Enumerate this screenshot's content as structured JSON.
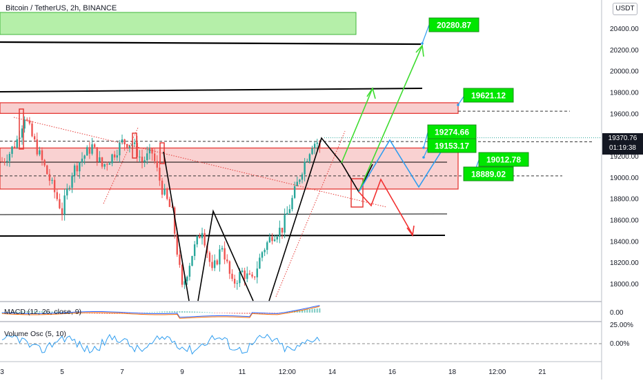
{
  "header": {
    "symbol_title": "Bitcoin / TetherUS, 2h, BINANCE"
  },
  "currency_badge": "USDT",
  "price_axis": {
    "ticks": [
      {
        "label": "20400.00",
        "value": 20400
      },
      {
        "label": "20200.00",
        "value": 20200
      },
      {
        "label": "20000.00",
        "value": 20000
      },
      {
        "label": "19800.00",
        "value": 19800
      },
      {
        "label": "19600.00",
        "value": 19600
      },
      {
        "label": "19200.00",
        "value": 19200
      },
      {
        "label": "19000.00",
        "value": 19000
      },
      {
        "label": "18800.00",
        "value": 18800
      },
      {
        "label": "18600.00",
        "value": 18600
      },
      {
        "label": "18400.00",
        "value": 18400
      },
      {
        "label": "18200.00",
        "value": 18200
      },
      {
        "label": "18000.00",
        "value": 18000
      }
    ],
    "last_price": "19370.76",
    "countdown": "01:19:38"
  },
  "time_axis": {
    "ticks": [
      {
        "label": "3",
        "t": 0
      },
      {
        "label": "5",
        "t": 24
      },
      {
        "label": "7",
        "t": 48
      },
      {
        "label": "9",
        "t": 72
      },
      {
        "label": "11",
        "t": 96
      },
      {
        "label": "12:00",
        "t": 114
      },
      {
        "label": "14",
        "t": 132
      },
      {
        "label": "16",
        "t": 156
      },
      {
        "label": "18",
        "t": 180
      },
      {
        "label": "12:00",
        "t": 198
      },
      {
        "label": "21",
        "t": 216
      }
    ]
  },
  "price_labels": [
    {
      "label": "20280.87",
      "value": 20280.87
    },
    {
      "label": "19621.12",
      "value": 19621.12
    },
    {
      "label": "19274.66",
      "value": 19274.66
    },
    {
      "label": "19153.17",
      "value": 19153.17
    },
    {
      "label": "19012.78",
      "value": 19012.78
    },
    {
      "label": "18889.02",
      "value": 18889.02
    }
  ],
  "indicators": {
    "macd": {
      "label": "MACD (12, 26, close, 9)",
      "axis_label": "0.00"
    },
    "volume_osc": {
      "label": "Volume Osc (5, 10)",
      "axis_labels": [
        "25.00%",
        "0.00%"
      ]
    }
  },
  "colors": {
    "up": "#26a69a",
    "down": "#ef5350",
    "zone_fill": "#f7c6c6",
    "zone_border": "#e53935",
    "label_green": "#00e600",
    "arrow_green": "#3ddc2f",
    "path_blue": "#2e9df0",
    "arrow_red": "#f22f2f",
    "target_box": "#a8ec9a"
  },
  "chart_data": {
    "type": "candlestick",
    "title": "Bitcoin / TetherUS, 2h, BINANCE",
    "y_range": [
      17850,
      20600
    ],
    "x_range_hours": [
      0,
      222
    ],
    "grid": false,
    "horizontal_levels": [
      20280.87,
      19621.12,
      19274.66,
      19153.17,
      19012.78,
      18889.02
    ],
    "resistance_zones": [
      [
        19600,
        19700
      ],
      [
        18889.02,
        19274.66
      ]
    ],
    "projected_targets": [
      20280.87,
      19800,
      18470
    ]
  }
}
